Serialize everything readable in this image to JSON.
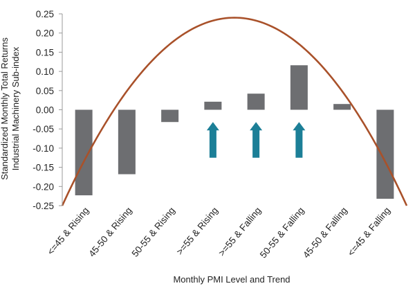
{
  "chart_data": {
    "type": "bar",
    "title": "",
    "xlabel": "Monthly PMI Level and Trend",
    "ylabel_lines": [
      "Standardized Monthly Total Returns",
      "Industrial Machinery Sub-index"
    ],
    "categories": [
      "<=45 & Rising",
      "45-50 & Rising",
      "50-55 & Rising",
      ">=55 & Rising",
      ">=55 & Falling",
      "50-55 & Falling",
      "45-50 & Falling",
      "<=45 & Falling"
    ],
    "values": [
      -0.223,
      -0.168,
      -0.032,
      0.021,
      0.042,
      0.116,
      0.015,
      -0.232
    ],
    "ylim": [
      -0.25,
      0.25
    ],
    "yticks": [
      "0.25",
      "0.20",
      "0.15",
      "0.10",
      "0.05",
      "0.00",
      "-0.05",
      "-0.10",
      "-0.15",
      "-0.20",
      "-0.25"
    ],
    "ytick_values": [
      0.25,
      0.2,
      0.15,
      0.1,
      0.05,
      0.0,
      -0.05,
      -0.1,
      -0.15,
      -0.2,
      -0.25
    ],
    "grid": false,
    "bar_color": "#6d6e71",
    "curve": {
      "type": "parabola-overlay",
      "color": "#a9512a",
      "x_range": [
        -0.5,
        7.5
      ],
      "peak_x": 3.5,
      "peak_y": 0.24,
      "end_y": -0.25
    },
    "arrows": {
      "color": "#1c7f97",
      "direction": "up",
      "category_indices": [
        3,
        4,
        5
      ],
      "y_from": -0.125,
      "y_to": -0.032
    }
  }
}
